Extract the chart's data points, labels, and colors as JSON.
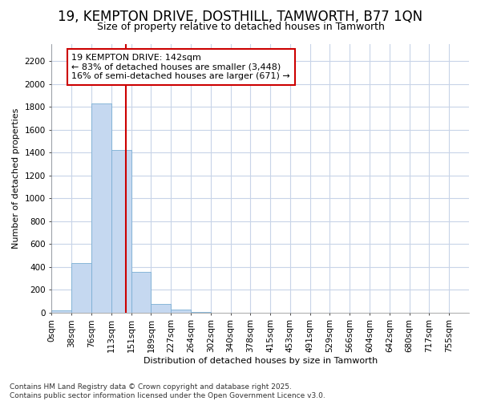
{
  "title_line1": "19, KEMPTON DRIVE, DOSTHILL, TAMWORTH, B77 1QN",
  "title_line2": "Size of property relative to detached houses in Tamworth",
  "xlabel": "Distribution of detached houses by size in Tamworth",
  "ylabel": "Number of detached properties",
  "footer_line1": "Contains HM Land Registry data © Crown copyright and database right 2025.",
  "footer_line2": "Contains public sector information licensed under the Open Government Licence v3.0.",
  "annotation_line1": "19 KEMPTON DRIVE: 142sqm",
  "annotation_line2": "← 83% of detached houses are smaller (3,448)",
  "annotation_line3": "16% of semi-detached houses are larger (671) →",
  "property_size": 142,
  "bin_width": 37.85,
  "bar_color": "#c5d8f0",
  "bar_edge_color": "#7bafd4",
  "vline_color": "#cc0000",
  "grid_color": "#c8d4e8",
  "background_color": "#ffffff",
  "bin_labels": [
    "0sqm",
    "38sqm",
    "76sqm",
    "113sqm",
    "151sqm",
    "189sqm",
    "227sqm",
    "264sqm",
    "302sqm",
    "340sqm",
    "378sqm",
    "415sqm",
    "453sqm",
    "491sqm",
    "529sqm",
    "566sqm",
    "604sqm",
    "642sqm",
    "680sqm",
    "717sqm",
    "755sqm"
  ],
  "bar_heights": [
    20,
    430,
    1830,
    1420,
    355,
    75,
    25,
    5,
    0,
    0,
    0,
    0,
    0,
    0,
    0,
    0,
    0,
    0,
    0,
    0,
    0
  ],
  "ylim": [
    0,
    2350
  ],
  "yticks": [
    0,
    200,
    400,
    600,
    800,
    1000,
    1200,
    1400,
    1600,
    1800,
    2000,
    2200
  ],
  "annotation_box_color": "#ffffff",
  "annotation_box_edge": "#cc0000",
  "title_fontsize": 12,
  "subtitle_fontsize": 9,
  "axis_label_fontsize": 8,
  "tick_fontsize": 7.5,
  "annotation_fontsize": 8,
  "footer_fontsize": 6.5
}
